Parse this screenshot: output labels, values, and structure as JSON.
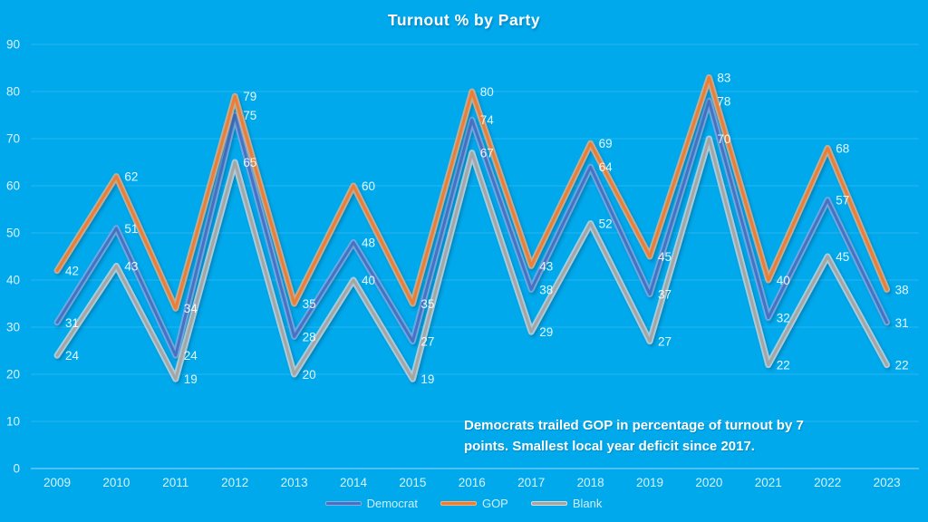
{
  "window": {
    "background_color": "#00A8EC"
  },
  "annotation": {
    "line1": "Democrats trailed GOP in percentage of turnout by 7",
    "line2": "points. Smallest local year deficit since 2017."
  },
  "chart_data": {
    "type": "line",
    "title": "Turnout % by Party",
    "xlabel": "",
    "ylabel": "",
    "categories": [
      "2009",
      "2010",
      "2011",
      "2012",
      "2013",
      "2014",
      "2015",
      "2016",
      "2017",
      "2018",
      "2019",
      "2020",
      "2021",
      "2022",
      "2023"
    ],
    "series": [
      {
        "name": "Democrat",
        "color": "#4472C4",
        "halo_color": "#8FAADC",
        "values": [
          31,
          51,
          24,
          75,
          28,
          48,
          27,
          74,
          38,
          64,
          37,
          78,
          32,
          57,
          31
        ]
      },
      {
        "name": "GOP",
        "color": "#ED7D31",
        "halo_color": "#F4B183",
        "values": [
          42,
          62,
          34,
          79,
          35,
          60,
          35,
          80,
          43,
          69,
          45,
          83,
          40,
          68,
          38
        ]
      },
      {
        "name": "Blank",
        "color": "#A5A5A5",
        "halo_color": "#D9D9D9",
        "values": [
          24,
          43,
          19,
          65,
          20,
          40,
          19,
          67,
          29,
          52,
          27,
          70,
          22,
          45,
          22
        ]
      }
    ],
    "ylim": [
      0,
      90
    ],
    "yticks": [
      0,
      10,
      20,
      30,
      40,
      50,
      60,
      70,
      80,
      90
    ],
    "grid": true,
    "gridline_color": "rgba(255,255,255,0.16)",
    "axis_line_color": "rgba(255,255,255,0.6)",
    "tick_label_color": "rgba(255,255,255,0.85)",
    "data_label_color": "rgba(255,255,255,0.9)",
    "data_labels": true,
    "legend_position": "bottom",
    "annotation": "Democrats trailed GOP in percentage of turnout by 7 points. Smallest local year deficit since 2017."
  }
}
